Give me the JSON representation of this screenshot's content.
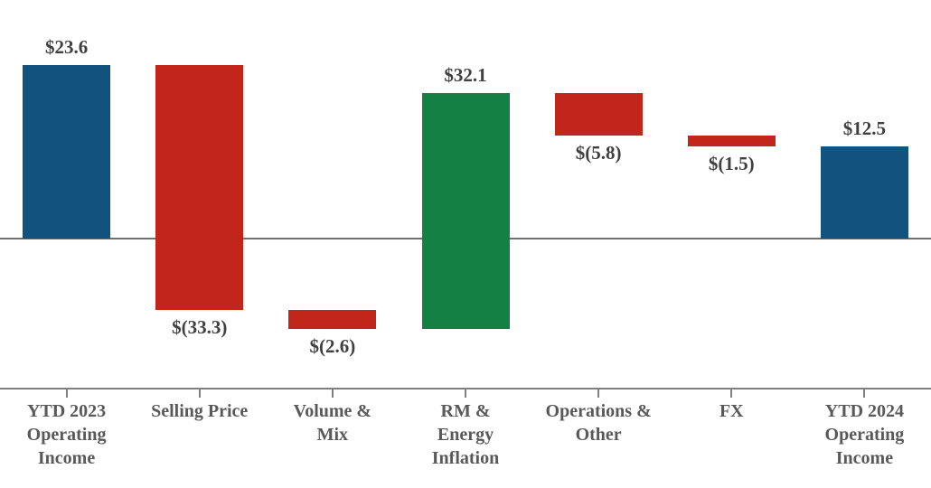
{
  "chart_data": {
    "type": "bar",
    "subtype": "waterfall",
    "categories": [
      "YTD 2023\nOperating\nIncome",
      "Selling Price",
      "Volume &\nMix",
      "RM &\nEnergy\nInflation",
      "Operations &\nOther",
      "FX",
      "YTD 2024\nOperating\nIncome"
    ],
    "values": [
      23.6,
      -33.3,
      -2.6,
      32.1,
      -5.8,
      -1.5,
      12.5
    ],
    "labels": [
      "$23.6",
      "$(33.3)",
      "$(2.6)",
      "$32.1",
      "$(5.8)",
      "$(1.5)",
      "$12.5"
    ],
    "bar_roles": [
      "total",
      "decrease",
      "decrease",
      "increase",
      "decrease",
      "decrease",
      "total"
    ],
    "cumulative": [
      23.6,
      -9.7,
      -12.3,
      19.8,
      14.0,
      12.5,
      12.5
    ],
    "baseline": 0,
    "ylim": [
      -20.4,
      32.5
    ],
    "grid": false,
    "legend": false,
    "colors": {
      "total": "#11527E",
      "increase": "#148044",
      "decrease": "#C2261B",
      "axis_line": "#808080",
      "zero_line": "#6F6F6F",
      "data_label": "#404040",
      "category_label": "#595959"
    }
  }
}
